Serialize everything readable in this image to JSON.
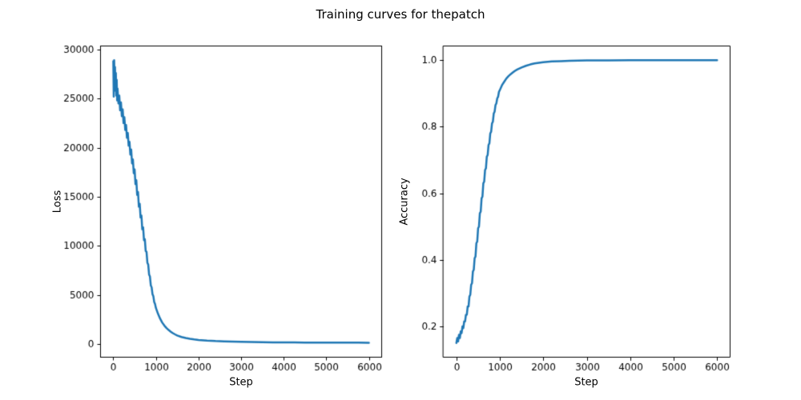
{
  "figure": {
    "title": "Training curves for thepatch",
    "background": "#ffffff",
    "line_color": "#1f77b4"
  },
  "chart_data": [
    {
      "type": "line",
      "xlabel": "Step",
      "ylabel": "Loss",
      "xlim": [
        -300,
        6300
      ],
      "ylim": [
        -1308,
        30338
      ],
      "xtick_values": [
        0,
        1000,
        2000,
        3000,
        4000,
        5000,
        6000
      ],
      "xtick_labels": [
        "0",
        "1000",
        "2000",
        "3000",
        "4000",
        "5000",
        "6000"
      ],
      "ytick_values": [
        0,
        5000,
        10000,
        15000,
        20000,
        25000,
        30000
      ],
      "ytick_labels": [
        "0",
        "5000",
        "10000",
        "15000",
        "20000",
        "25000",
        "30000"
      ],
      "line_color": "#1f77b4",
      "points": [
        [
          0,
          28800
        ],
        [
          10,
          25200
        ],
        [
          20,
          28900
        ],
        [
          30,
          26500
        ],
        [
          40,
          28200
        ],
        [
          50,
          25800
        ],
        [
          60,
          27600
        ],
        [
          70,
          25300
        ],
        [
          80,
          26900
        ],
        [
          90,
          24800
        ],
        [
          100,
          26000
        ],
        [
          120,
          24500
        ],
        [
          140,
          25300
        ],
        [
          160,
          23800
        ],
        [
          180,
          24600
        ],
        [
          200,
          23200
        ],
        [
          220,
          23900
        ],
        [
          240,
          22500
        ],
        [
          260,
          23100
        ],
        [
          280,
          21800
        ],
        [
          300,
          22300
        ],
        [
          320,
          21000
        ],
        [
          340,
          21500
        ],
        [
          360,
          20200
        ],
        [
          380,
          20600
        ],
        [
          400,
          19300
        ],
        [
          420,
          19800
        ],
        [
          440,
          18400
        ],
        [
          460,
          18800
        ],
        [
          480,
          17400
        ],
        [
          500,
          17800
        ],
        [
          520,
          16300
        ],
        [
          540,
          16700
        ],
        [
          560,
          15200
        ],
        [
          580,
          15500
        ],
        [
          600,
          14000
        ],
        [
          620,
          14300
        ],
        [
          640,
          12900
        ],
        [
          660,
          13100
        ],
        [
          680,
          11700
        ],
        [
          700,
          11900
        ],
        [
          720,
          10600
        ],
        [
          740,
          10700
        ],
        [
          760,
          9500
        ],
        [
          780,
          9400
        ],
        [
          800,
          8300
        ],
        [
          820,
          8100
        ],
        [
          840,
          7100
        ],
        [
          860,
          6900
        ],
        [
          880,
          6000
        ],
        [
          900,
          5800
        ],
        [
          920,
          5100
        ],
        [
          940,
          4900
        ],
        [
          960,
          4300
        ],
        [
          980,
          4100
        ],
        [
          1000,
          3700
        ],
        [
          1050,
          3100
        ],
        [
          1100,
          2600
        ],
        [
          1150,
          2200
        ],
        [
          1200,
          1900
        ],
        [
          1250,
          1650
        ],
        [
          1300,
          1450
        ],
        [
          1350,
          1280
        ],
        [
          1400,
          1130
        ],
        [
          1450,
          1010
        ],
        [
          1500,
          900
        ],
        [
          1600,
          750
        ],
        [
          1700,
          640
        ],
        [
          1800,
          560
        ],
        [
          1900,
          500
        ],
        [
          2000,
          450
        ],
        [
          2200,
          380
        ],
        [
          2400,
          330
        ],
        [
          2600,
          300
        ],
        [
          2800,
          270
        ],
        [
          3000,
          250
        ],
        [
          3250,
          230
        ],
        [
          3500,
          215
        ],
        [
          3750,
          205
        ],
        [
          4000,
          195
        ],
        [
          4250,
          190
        ],
        [
          4500,
          185
        ],
        [
          4750,
          180
        ],
        [
          5000,
          175
        ],
        [
          5250,
          172
        ],
        [
          5500,
          170
        ],
        [
          5750,
          168
        ],
        [
          6000,
          165
        ]
      ]
    },
    {
      "type": "line",
      "xlabel": "Step",
      "ylabel": "Accuracy",
      "xlim": [
        -300,
        6300
      ],
      "ylim": [
        0.1075,
        1.0425
      ],
      "xtick_values": [
        0,
        1000,
        2000,
        3000,
        4000,
        5000,
        6000
      ],
      "xtick_labels": [
        "0",
        "1000",
        "2000",
        "3000",
        "4000",
        "5000",
        "6000"
      ],
      "ytick_values": [
        0.2,
        0.4,
        0.6,
        0.8,
        1.0
      ],
      "ytick_labels": [
        "0.2",
        "0.4",
        "0.6",
        "0.8",
        "1.0"
      ],
      "line_color": "#1f77b4",
      "points": [
        [
          0,
          0.15
        ],
        [
          20,
          0.165
        ],
        [
          40,
          0.155
        ],
        [
          60,
          0.175
        ],
        [
          80,
          0.165
        ],
        [
          100,
          0.185
        ],
        [
          120,
          0.18
        ],
        [
          140,
          0.2
        ],
        [
          160,
          0.195
        ],
        [
          180,
          0.215
        ],
        [
          200,
          0.215
        ],
        [
          220,
          0.235
        ],
        [
          240,
          0.235
        ],
        [
          260,
          0.26
        ],
        [
          280,
          0.26
        ],
        [
          300,
          0.29
        ],
        [
          320,
          0.295
        ],
        [
          340,
          0.325
        ],
        [
          360,
          0.33
        ],
        [
          380,
          0.365
        ],
        [
          400,
          0.37
        ],
        [
          420,
          0.405
        ],
        [
          440,
          0.41
        ],
        [
          460,
          0.45
        ],
        [
          480,
          0.455
        ],
        [
          500,
          0.495
        ],
        [
          520,
          0.5
        ],
        [
          540,
          0.54
        ],
        [
          560,
          0.545
        ],
        [
          580,
          0.585
        ],
        [
          600,
          0.59
        ],
        [
          620,
          0.63
        ],
        [
          640,
          0.635
        ],
        [
          660,
          0.67
        ],
        [
          680,
          0.675
        ],
        [
          700,
          0.71
        ],
        [
          720,
          0.715
        ],
        [
          740,
          0.745
        ],
        [
          760,
          0.75
        ],
        [
          780,
          0.78
        ],
        [
          800,
          0.785
        ],
        [
          820,
          0.81
        ],
        [
          840,
          0.815
        ],
        [
          860,
          0.84
        ],
        [
          880,
          0.845
        ],
        [
          900,
          0.865
        ],
        [
          920,
          0.87
        ],
        [
          940,
          0.885
        ],
        [
          960,
          0.89
        ],
        [
          980,
          0.905
        ],
        [
          1000,
          0.91
        ],
        [
          1050,
          0.925
        ],
        [
          1100,
          0.935
        ],
        [
          1150,
          0.945
        ],
        [
          1200,
          0.952
        ],
        [
          1250,
          0.958
        ],
        [
          1300,
          0.963
        ],
        [
          1350,
          0.968
        ],
        [
          1400,
          0.972
        ],
        [
          1450,
          0.975
        ],
        [
          1500,
          0.978
        ],
        [
          1600,
          0.983
        ],
        [
          1700,
          0.987
        ],
        [
          1800,
          0.99
        ],
        [
          1900,
          0.992
        ],
        [
          2000,
          0.994
        ],
        [
          2200,
          0.996
        ],
        [
          2400,
          0.997
        ],
        [
          2600,
          0.998
        ],
        [
          2800,
          0.9985
        ],
        [
          3000,
          0.999
        ],
        [
          3500,
          0.9995
        ],
        [
          4000,
          1.0
        ],
        [
          4500,
          1.0
        ],
        [
          5000,
          1.0
        ],
        [
          5500,
          1.0
        ],
        [
          6000,
          1.0
        ]
      ]
    }
  ]
}
